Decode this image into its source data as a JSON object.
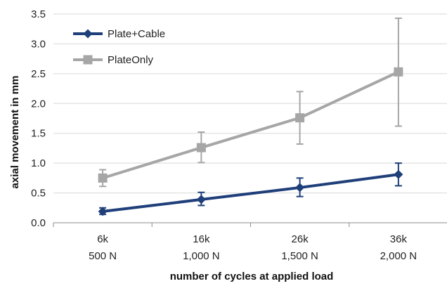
{
  "chart_data": {
    "type": "line",
    "categories": [
      {
        "line1": "6k",
        "line2": "500 N"
      },
      {
        "line1": "16k",
        "line2": "1,000 N"
      },
      {
        "line1": "26k",
        "line2": "1,500 N"
      },
      {
        "line1": "36k",
        "line2": "2,000 N"
      }
    ],
    "series": [
      {
        "name": "Plate+Cable",
        "color": "#1f3f7a",
        "marker": "diamond",
        "values": [
          0.19,
          0.39,
          0.59,
          0.81
        ],
        "err_low": [
          0.14,
          0.29,
          0.44,
          0.62
        ],
        "err_high": [
          0.25,
          0.51,
          0.75,
          1.0
        ]
      },
      {
        "name": "PlateOnly",
        "color": "#a6a6a6",
        "marker": "square",
        "values": [
          0.75,
          1.26,
          1.76,
          2.53
        ],
        "err_low": [
          0.61,
          1.01,
          1.32,
          1.62
        ],
        "err_high": [
          0.89,
          1.52,
          2.2,
          3.43
        ]
      }
    ],
    "ylim": [
      0.0,
      3.5
    ],
    "yticks": [
      "0.0",
      "0.5",
      "1.0",
      "1.5",
      "2.0",
      "2.5",
      "3.0",
      "3.5"
    ],
    "xlabel": "number of cycles at applied load",
    "ylabel": "axial movement in mm",
    "grid": "horizontal",
    "legend_position": "top-left"
  }
}
